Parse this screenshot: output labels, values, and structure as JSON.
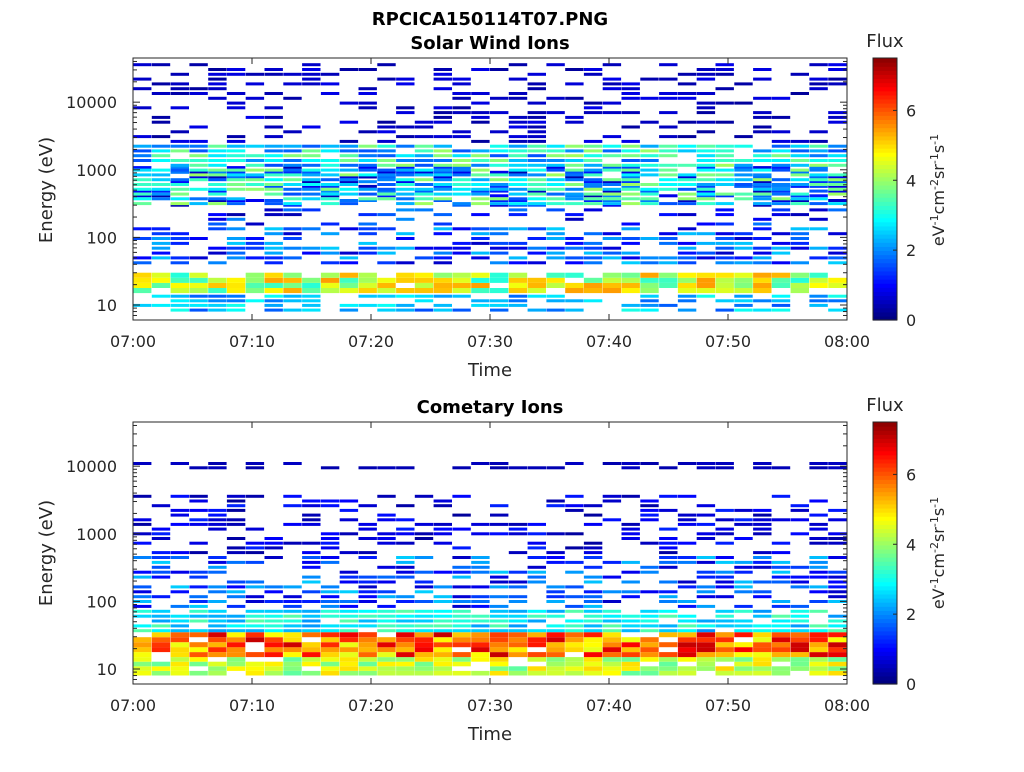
{
  "figure_title": "RPCICA150114T07.PNG",
  "chart_data": [
    {
      "type": "heatmap",
      "title": "Solar Wind Ions",
      "xlabel": "Time",
      "ylabel": "Energy (eV)",
      "x_ticks": [
        "07:00",
        "07:10",
        "07:20",
        "07:30",
        "07:40",
        "07:50",
        "08:00"
      ],
      "x_range": [
        "07:00",
        "08:00"
      ],
      "y_scale": "log",
      "y_ticks": [
        10,
        100,
        1000,
        10000
      ],
      "y_tick_labels": [
        "10",
        "100",
        "1000",
        "10000"
      ],
      "ylim": [
        6,
        45000
      ],
      "colorbar": {
        "label": "Flux",
        "units": "eV-1cm-2sr-1s-1",
        "range": [
          0,
          7.5
        ],
        "ticks": [
          0,
          2,
          4,
          6
        ],
        "colormap": "jet"
      },
      "grid": false,
      "description_of_values": "Energy-time spectrogram; flux values encoded by color",
      "bands": [
        {
          "energy_range": [
            8,
            15
          ],
          "flux_range": [
            1.5,
            3.0
          ]
        },
        {
          "energy_range": [
            15,
            30
          ],
          "flux_range": [
            3.0,
            5.5
          ]
        },
        {
          "energy_range": [
            40,
            150
          ],
          "flux_range": [
            0.5,
            2.5
          ]
        },
        {
          "energy_range": [
            150,
            1200
          ],
          "flux_range": [
            0.3,
            2.0
          ]
        },
        {
          "energy_range": [
            300,
            2500
          ],
          "flux_range": [
            1.5,
            4.0
          ]
        },
        {
          "energy_range": [
            2500,
            40000
          ],
          "flux_range": [
            0.2,
            0.8
          ]
        }
      ]
    },
    {
      "type": "heatmap",
      "title": "Cometary Ions",
      "xlabel": "Time",
      "ylabel": "Energy (eV)",
      "x_ticks": [
        "07:00",
        "07:10",
        "07:20",
        "07:30",
        "07:40",
        "07:50",
        "08:00"
      ],
      "x_range": [
        "07:00",
        "08:00"
      ],
      "y_scale": "log",
      "y_ticks": [
        10,
        100,
        1000,
        10000
      ],
      "y_tick_labels": [
        "10",
        "100",
        "1000",
        "10000"
      ],
      "ylim": [
        6,
        45000
      ],
      "colorbar": {
        "label": "Flux",
        "units": "eV-1cm-2sr-1s-1",
        "range": [
          0,
          7.5
        ],
        "ticks": [
          0,
          2,
          4,
          6
        ],
        "colormap": "jet"
      },
      "grid": false,
      "description_of_values": "Energy-time spectrogram; flux values encoded by color",
      "bands": [
        {
          "energy_range": [
            8,
            15
          ],
          "flux_range": [
            3.5,
            5.0
          ]
        },
        {
          "energy_range": [
            15,
            35
          ],
          "flux_range": [
            4.5,
            7.0
          ]
        },
        {
          "energy_range": [
            35,
            80
          ],
          "flux_range": [
            2.0,
            3.5
          ]
        },
        {
          "energy_range": [
            80,
            500
          ],
          "flux_range": [
            0.5,
            2.5
          ]
        },
        {
          "energy_range": [
            500,
            4000
          ],
          "flux_range": [
            0.2,
            1.2
          ]
        },
        {
          "energy_range": [
            9000,
            12000
          ],
          "flux_range": [
            0.3,
            0.5
          ]
        }
      ]
    }
  ]
}
